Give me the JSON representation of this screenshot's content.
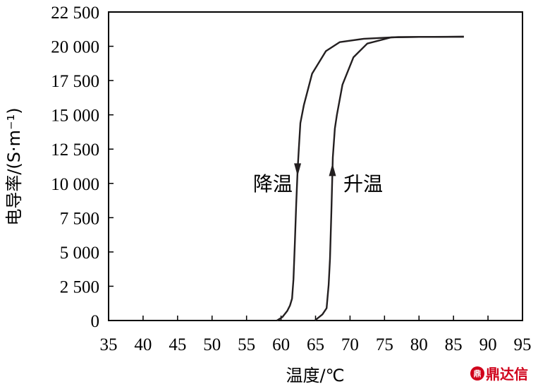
{
  "chart_data": {
    "type": "line",
    "xlabel": "温度/℃",
    "ylabel": "电导率/(S·m⁻¹)",
    "xlim": [
      35,
      95
    ],
    "ylim": [
      0,
      22500
    ],
    "x_ticks": [
      "35",
      "40",
      "45",
      "50",
      "55",
      "60",
      "65",
      "70",
      "75",
      "80",
      "85",
      "90",
      "95"
    ],
    "y_ticks": [
      "0",
      "2 500",
      "5 000",
      "7 500",
      "10 000",
      "12 500",
      "15 000",
      "17 500",
      "20 000",
      "22 500"
    ],
    "grid": false,
    "series": [
      {
        "name": "降温",
        "direction": "down",
        "x": [
          86.5,
          83,
          80,
          77,
          72,
          68.5,
          66.5,
          64.5,
          63.3,
          62.8,
          62.6,
          62.4,
          62.2,
          62.0,
          61.8,
          61.6,
          61.3,
          60.9,
          60.2,
          59.4
        ],
        "y": [
          20700,
          20680,
          20680,
          20670,
          20550,
          20300,
          19650,
          18000,
          15700,
          14400,
          12700,
          11000,
          8500,
          5700,
          3000,
          1600,
          1100,
          700,
          250,
          0
        ]
      },
      {
        "name": "升温",
        "direction": "up",
        "x": [
          64.9,
          66.0,
          66.6,
          66.9,
          67.1,
          67.3,
          67.5,
          67.8,
          68.1,
          68.9,
          70.5,
          72.5,
          76.0,
          80.0,
          86.5
        ],
        "y": [
          0,
          450,
          900,
          2600,
          4500,
          8000,
          11900,
          14000,
          15000,
          17200,
          19200,
          20200,
          20650,
          20680,
          20700
        ]
      }
    ],
    "annotations": [
      {
        "text": "降温",
        "x": 58.8,
        "y": 10000
      },
      {
        "text": "升温",
        "x": 71.9,
        "y": 10000
      }
    ]
  },
  "watermark": {
    "text": "鼎达信",
    "logo": "鼎"
  }
}
